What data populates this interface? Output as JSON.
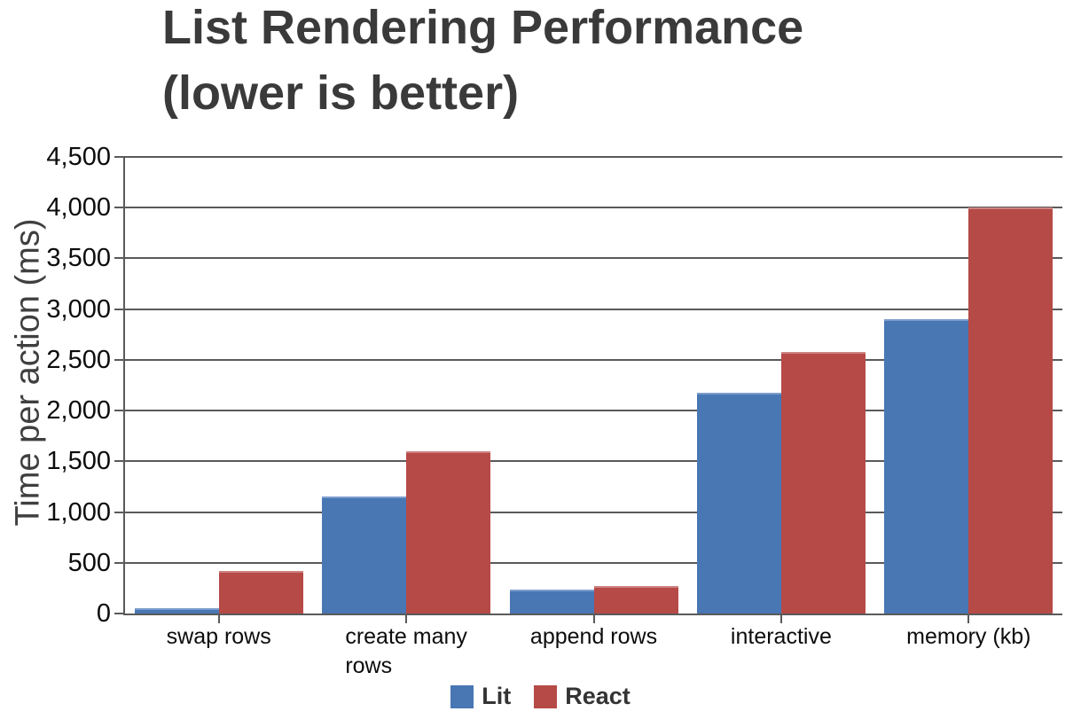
{
  "chart_data": {
    "type": "bar",
    "title": "List Rendering Performance (lower is better)",
    "title_lines": [
      "List Rendering Performance",
      "(lower is better)"
    ],
    "ylabel": "Time per action (ms)",
    "xlabel": "",
    "categories": [
      "swap rows",
      "create many rows",
      "append rows",
      "interactive",
      "memory (kb)"
    ],
    "category_label_lines": [
      [
        "swap rows"
      ],
      [
        "create many",
        "rows"
      ],
      [
        "append rows"
      ],
      [
        "interactive"
      ],
      [
        "memory (kb)"
      ]
    ],
    "series": [
      {
        "name": "Lit",
        "color": "#4877b4",
        "highlight": "#7d9ecd",
        "values": [
          50,
          1150,
          240,
          2175,
          2900
        ]
      },
      {
        "name": "React",
        "color": "#b64a47",
        "highlight": "#cd8280",
        "values": [
          420,
          1600,
          275,
          2580,
          4000
        ]
      }
    ],
    "ylim": [
      0,
      4500
    ],
    "ytick_step": 500,
    "ytick_labels": [
      "0",
      "500",
      "1,000",
      "1,500",
      "2,000",
      "2,500",
      "3,000",
      "3,500",
      "4,000",
      "4,500"
    ],
    "grid": true,
    "legend_position": "bottom"
  },
  "colors": {
    "background": "#ffffff",
    "grid": "#5a5a5a",
    "title_text": "#3a3a3a",
    "axis_text": "#0c0c0c",
    "ylabel_text": "#3f3f3f",
    "legend_text": "#343434"
  }
}
